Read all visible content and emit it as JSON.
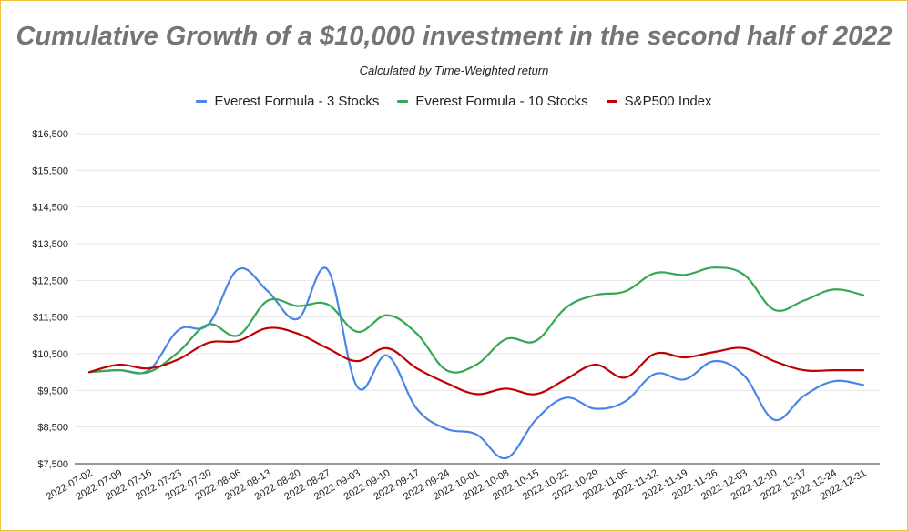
{
  "chart_data": {
    "type": "line",
    "title": "Cumulative Growth of a $10,000 investment in the second half of 2022",
    "subtitle": "Calculated by Time-Weighted return",
    "xlabel": "",
    "ylabel": "",
    "ylim": [
      7500,
      16500
    ],
    "y_ticks": [
      7500,
      8500,
      9500,
      10500,
      11500,
      12500,
      13500,
      14500,
      15500,
      16500
    ],
    "y_tick_labels": [
      "$7,500",
      "$8,500",
      "$9,500",
      "$10,500",
      "$11,500",
      "$12,500",
      "$13,500",
      "$14,500",
      "$15,500",
      "$16,500"
    ],
    "grid": true,
    "legend_position": "top",
    "x": [
      "2022-07-02",
      "2022-07-09",
      "2022-07-16",
      "2022-07-23",
      "2022-07-30",
      "2022-08-06",
      "2022-08-13",
      "2022-08-20",
      "2022-08-27",
      "2022-09-03",
      "2022-09-10",
      "2022-09-17",
      "2022-09-24",
      "2022-10-01",
      "2022-10-08",
      "2022-10-15",
      "2022-10-22",
      "2022-10-29",
      "2022-11-05",
      "2022-11-12",
      "2022-11-19",
      "2022-11-26",
      "2022-12-03",
      "2022-12-10",
      "2022-12-17",
      "2022-12-24",
      "2022-12-31"
    ],
    "series": [
      {
        "name": "Everest Formula - 3 Stocks",
        "color": "#4a86e8",
        "values": [
          10000,
          10050,
          10050,
          11150,
          11300,
          12800,
          12200,
          11450,
          12800,
          9600,
          10450,
          9000,
          8450,
          8300,
          7650,
          8700,
          9300,
          9000,
          9200,
          9950,
          9800,
          10300,
          9900,
          8700,
          9350,
          9750,
          9650
        ]
      },
      {
        "name": "Everest Formula - 10 Stocks",
        "color": "#34a853",
        "values": [
          10000,
          10050,
          10000,
          10550,
          11300,
          11000,
          11950,
          11800,
          11850,
          11100,
          11550,
          11050,
          10050,
          10200,
          10900,
          10850,
          11750,
          12100,
          12200,
          12700,
          12650,
          12850,
          12650,
          11700,
          11950,
          12250,
          12100
        ]
      },
      {
        "name": "S&P500 Index",
        "color": "#c00000",
        "values": [
          10000,
          10200,
          10100,
          10350,
          10800,
          10850,
          11200,
          11050,
          10650,
          10300,
          10650,
          10100,
          9700,
          9400,
          9550,
          9400,
          9800,
          10200,
          9850,
          10500,
          10400,
          10550,
          10650,
          10300,
          10050,
          10050,
          10050
        ]
      }
    ]
  },
  "colors": {
    "grid": "#e6e6e6",
    "axis_text": "#222222",
    "title": "#757575",
    "border": "#f0c040"
  }
}
